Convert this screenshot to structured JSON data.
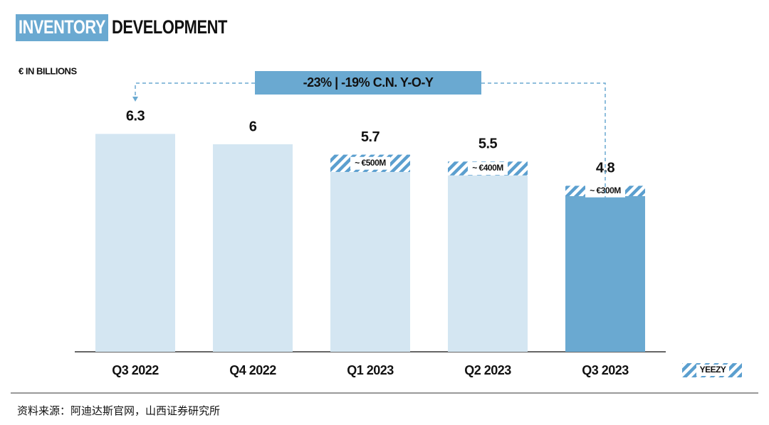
{
  "chart_data": {
    "type": "stacked_bar",
    "title_highlight": "INVENTORY",
    "title": "DEVELOPMENT",
    "unit_label": "€ IN BILLIONS",
    "annotation": "-23% | -19% C.N. Y-O-Y",
    "categories": [
      "Q3 2022",
      "Q4 2022",
      "Q1 2023",
      "Q2 2023",
      "Q3 2023"
    ],
    "totals": [
      6.3,
      6.0,
      5.7,
      5.5,
      4.8
    ],
    "series": [
      {
        "values": [
          6.3,
          6.0,
          5.2,
          5.1,
          4.5
        ],
        "colors": [
          "#d4e6f2",
          "#d4e6f2",
          "#d4e6f2",
          "#d4e6f2",
          "#6aa9d1"
        ]
      },
      {
        "name": "YEEZY",
        "color": "#5b9fcf",
        "hatched": true,
        "values": [
          null,
          null,
          0.5,
          0.4,
          0.3
        ],
        "value_labels": [
          null,
          null,
          "~ €500M",
          "~ €400M",
          "~ €300M"
        ]
      }
    ],
    "ylim": [
      0,
      7.5
    ],
    "source": "资料来源：阿迪达斯官网，山西证券研究所"
  }
}
